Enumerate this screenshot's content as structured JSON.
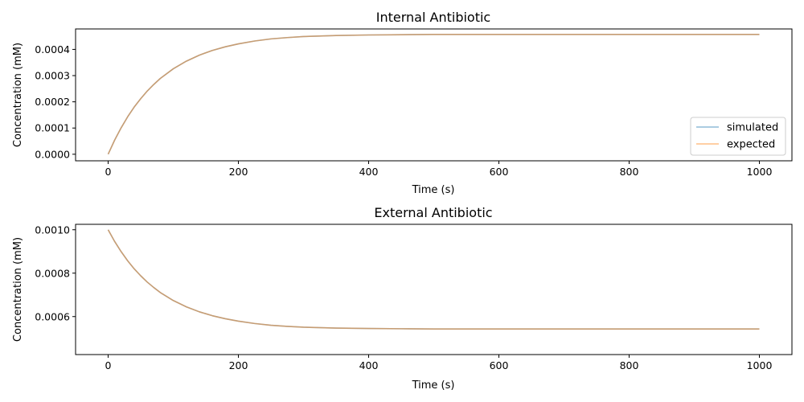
{
  "chart_data": [
    {
      "type": "line",
      "title": "Internal Antibiotic",
      "xlabel": "Time (s)",
      "ylabel": "Concentration (mM)",
      "xlim": [
        -50,
        1050
      ],
      "ylim": [
        -2.5e-05,
        0.000478
      ],
      "xticks": [
        0,
        200,
        400,
        600,
        800,
        1000
      ],
      "xtick_labels": [
        "0",
        "200",
        "400",
        "600",
        "800",
        "1000"
      ],
      "yticks": [
        0,
        0.0001,
        0.0002,
        0.0003,
        0.0004
      ],
      "ytick_labels": [
        "0.0000",
        "0.0001",
        "0.0002",
        "0.0003",
        "0.0004"
      ],
      "legend_position": "lower-right",
      "series": [
        {
          "name": "simulated",
          "color": "#1f77b4",
          "x": [
            0,
            10,
            20,
            30,
            40,
            50,
            60,
            70,
            80,
            100,
            120,
            140,
            160,
            180,
            200,
            225,
            250,
            275,
            300,
            350,
            400,
            450,
            500,
            600,
            700,
            800,
            900,
            1000
          ],
          "y": [
            0,
            5.4e-05,
            0.000101,
            0.000143,
            0.00018,
            0.000212,
            0.000241,
            0.000266,
            0.000289,
            0.000326,
            0.000355,
            0.000378,
            0.000396,
            0.00041,
            0.000421,
            0.000432,
            0.00044,
            0.000445,
            0.000449,
            0.000453,
            0.000455,
            0.000456,
            0.000457,
            0.000457,
            0.000457,
            0.000457,
            0.000457,
            0.000457
          ]
        },
        {
          "name": "expected",
          "color": "#ff7f0e",
          "x": [
            0,
            10,
            20,
            30,
            40,
            50,
            60,
            70,
            80,
            100,
            120,
            140,
            160,
            180,
            200,
            225,
            250,
            275,
            300,
            350,
            400,
            450,
            500,
            600,
            700,
            800,
            900,
            1000
          ],
          "y": [
            0,
            5.4e-05,
            0.000101,
            0.000143,
            0.00018,
            0.000212,
            0.000241,
            0.000266,
            0.000289,
            0.000326,
            0.000355,
            0.000378,
            0.000396,
            0.00041,
            0.000421,
            0.000432,
            0.00044,
            0.000445,
            0.000449,
            0.000453,
            0.000455,
            0.000456,
            0.000457,
            0.000457,
            0.000457,
            0.000457,
            0.000457,
            0.000457
          ]
        }
      ]
    },
    {
      "type": "line",
      "title": "External Antibiotic",
      "xlabel": "Time (s)",
      "ylabel": "Concentration (mM)",
      "xlim": [
        -50,
        1050
      ],
      "ylim": [
        0.000425,
        0.001025
      ],
      "xticks": [
        0,
        200,
        400,
        600,
        800,
        1000
      ],
      "xtick_labels": [
        "0",
        "200",
        "400",
        "600",
        "800",
        "1000"
      ],
      "yticks": [
        0.0006,
        0.0008,
        0.001
      ],
      "ytick_labels": [
        "0.0006",
        "0.0008",
        "0.0010"
      ],
      "series": [
        {
          "name": "simulated",
          "color": "#1f77b4",
          "x": [
            0,
            10,
            20,
            30,
            40,
            50,
            60,
            70,
            80,
            100,
            120,
            140,
            160,
            180,
            200,
            225,
            250,
            275,
            300,
            350,
            400,
            450,
            500,
            600,
            700,
            800,
            900,
            1000
          ],
          "y": [
            0.001,
            0.000946,
            0.000899,
            0.000857,
            0.00082,
            0.000788,
            0.000759,
            0.000734,
            0.000711,
            0.000674,
            0.000645,
            0.000622,
            0.000604,
            0.00059,
            0.000579,
            0.000568,
            0.00056,
            0.000555,
            0.000551,
            0.000547,
            0.000545,
            0.000544,
            0.000543,
            0.000543,
            0.000543,
            0.000543,
            0.000543,
            0.000543
          ]
        },
        {
          "name": "expected",
          "color": "#ff7f0e",
          "x": [
            0,
            10,
            20,
            30,
            40,
            50,
            60,
            70,
            80,
            100,
            120,
            140,
            160,
            180,
            200,
            225,
            250,
            275,
            300,
            350,
            400,
            450,
            500,
            600,
            700,
            800,
            900,
            1000
          ],
          "y": [
            0.001,
            0.000946,
            0.000899,
            0.000857,
            0.00082,
            0.000788,
            0.000759,
            0.000734,
            0.000711,
            0.000674,
            0.000645,
            0.000622,
            0.000604,
            0.00059,
            0.000579,
            0.000568,
            0.00056,
            0.000555,
            0.000551,
            0.000547,
            0.000545,
            0.000544,
            0.000543,
            0.000543,
            0.000543,
            0.000543,
            0.000543,
            0.000543
          ]
        }
      ]
    }
  ]
}
